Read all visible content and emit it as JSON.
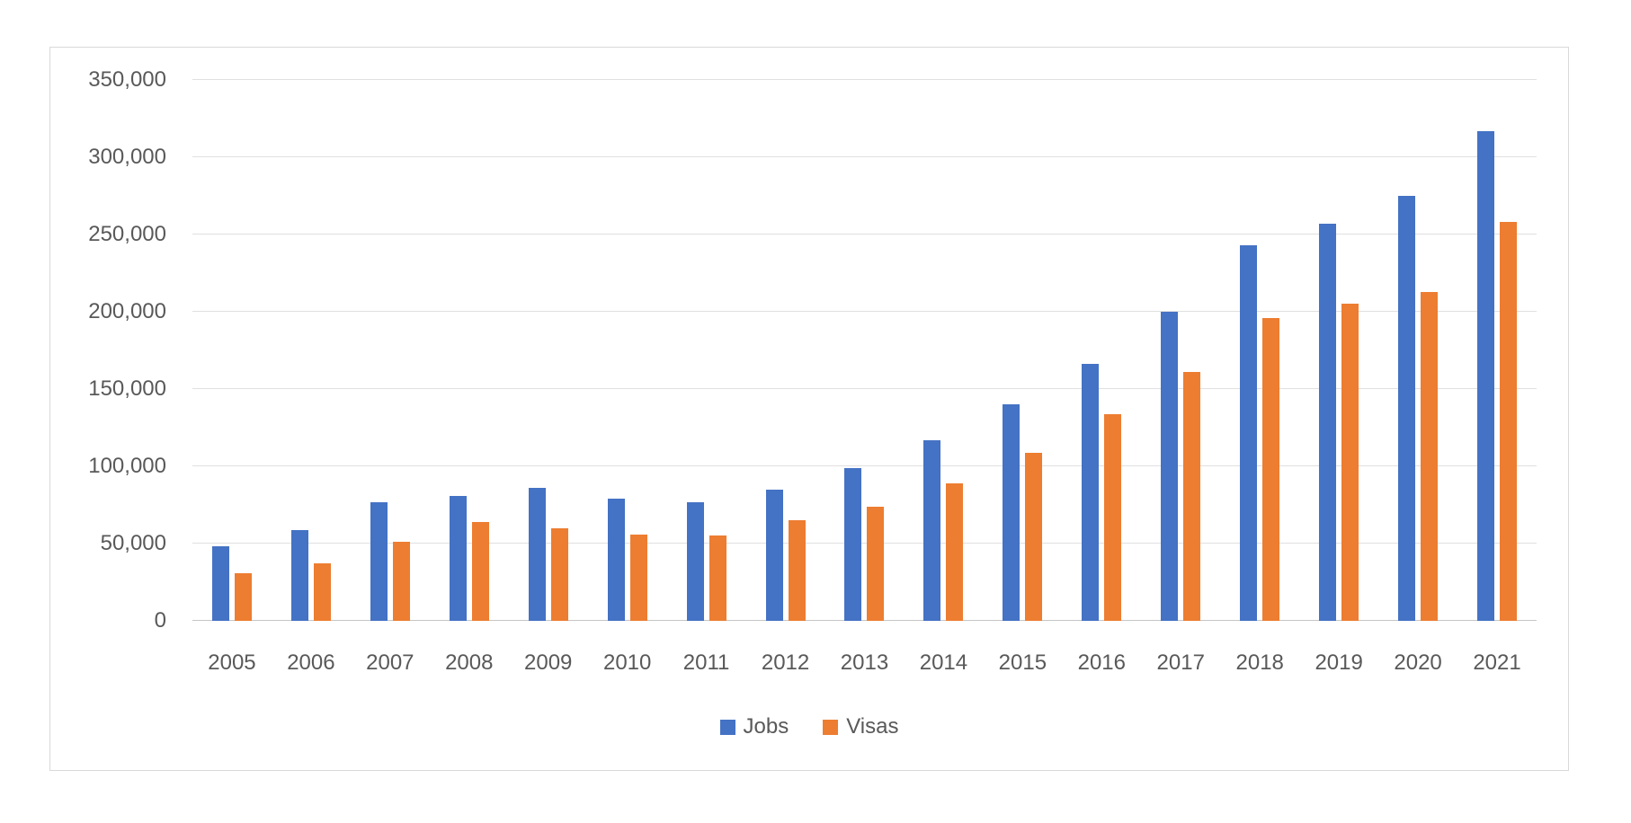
{
  "chart_data": {
    "type": "bar",
    "title": "",
    "xlabel": "",
    "ylabel": "",
    "categories": [
      "2005",
      "2006",
      "2007",
      "2008",
      "2009",
      "2010",
      "2011",
      "2012",
      "2013",
      "2014",
      "2015",
      "2016",
      "2017",
      "2018",
      "2019",
      "2020",
      "2021"
    ],
    "series": [
      {
        "name": "Jobs",
        "color": "#4472C4",
        "values": [
          48000,
          59000,
          77000,
          81000,
          86000,
          79000,
          77000,
          85000,
          99000,
          117000,
          140000,
          166000,
          200000,
          243000,
          257000,
          275000,
          317000
        ]
      },
      {
        "name": "Visas",
        "color": "#ED7D31",
        "values": [
          31000,
          37000,
          51000,
          64000,
          60000,
          56000,
          55000,
          65000,
          74000,
          89000,
          109000,
          134000,
          161000,
          196000,
          205000,
          213000,
          258000
        ]
      }
    ],
    "ylim": [
      0,
      350000
    ],
    "y_tick_step": 50000,
    "y_ticks": [
      "0",
      "50,000",
      "100,000",
      "150,000",
      "200,000",
      "250,000",
      "300,000",
      "350,000"
    ],
    "grid": true,
    "legend_position": "bottom-center",
    "colors": {
      "axis_text": "#595959",
      "gridline": "#e0e0e0",
      "axis_line": "#c6c6c6",
      "frame_border": "#d9d9d9",
      "background": "#ffffff"
    }
  }
}
